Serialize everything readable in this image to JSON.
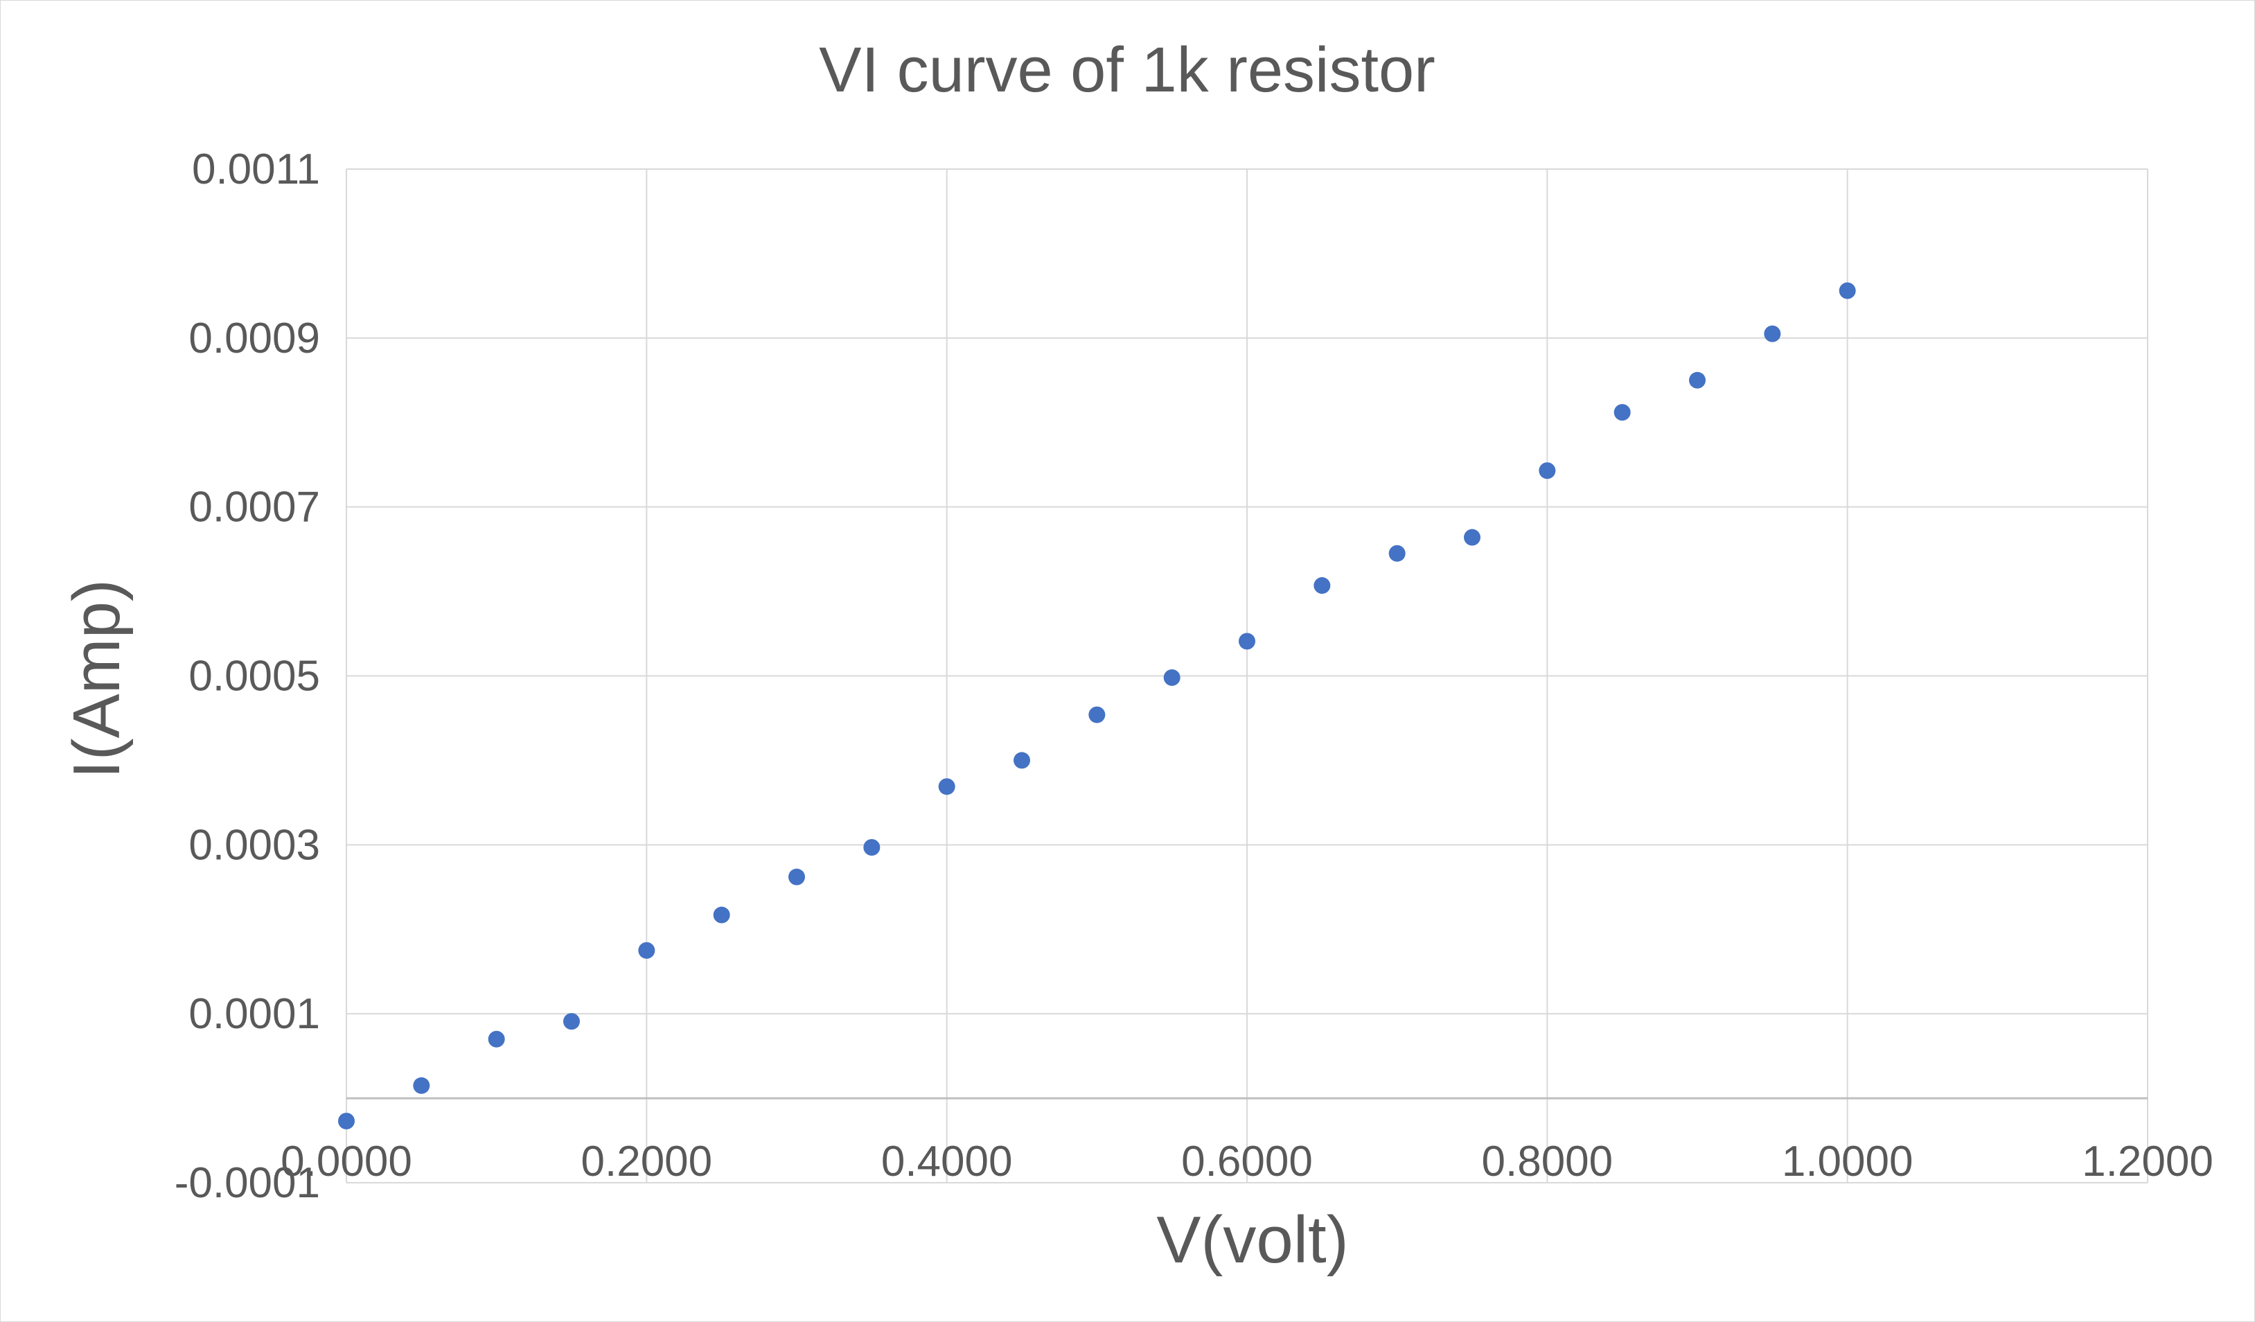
{
  "chart_data": {
    "type": "scatter",
    "title": "VI curve of 1k resistor",
    "xlabel": "V(volt)",
    "ylabel": "I(Amp)",
    "xlim": [
      0,
      1.2
    ],
    "ylim": [
      -0.0001,
      0.0011
    ],
    "x_ticks": [
      0,
      0.2,
      0.4,
      0.6,
      0.8,
      1.0,
      1.2
    ],
    "x_tick_labels": [
      "0.0000",
      "0.2000",
      "0.4000",
      "0.6000",
      "0.8000",
      "1.0000",
      "1.2000"
    ],
    "y_ticks": [
      -0.0001,
      0.0001,
      0.0003,
      0.0005,
      0.0007,
      0.0009,
      0.0011
    ],
    "y_tick_labels": [
      "-0.0001",
      "0.0001",
      "0.0003",
      "0.0005",
      "0.0007",
      "0.0009",
      "0.0011"
    ],
    "grid": true,
    "legend": "none",
    "marker_color": "#4472c4",
    "series": [
      {
        "x": [
          0.0,
          0.05,
          0.1,
          0.15,
          0.2,
          0.25,
          0.3,
          0.35,
          0.4,
          0.45,
          0.5,
          0.55,
          0.6,
          0.65,
          0.7,
          0.75,
          0.8,
          0.85,
          0.9,
          0.95,
          1.0
        ],
        "y": [
          -2.7e-05,
          1.5e-05,
          7e-05,
          9.1e-05,
          0.000175,
          0.000217,
          0.000262,
          0.000297,
          0.000369,
          0.0004,
          0.000454,
          0.000498,
          0.000541,
          0.000607,
          0.000645,
          0.000664,
          0.000743,
          0.000812,
          0.00085,
          0.000905,
          0.000956
        ]
      }
    ]
  }
}
